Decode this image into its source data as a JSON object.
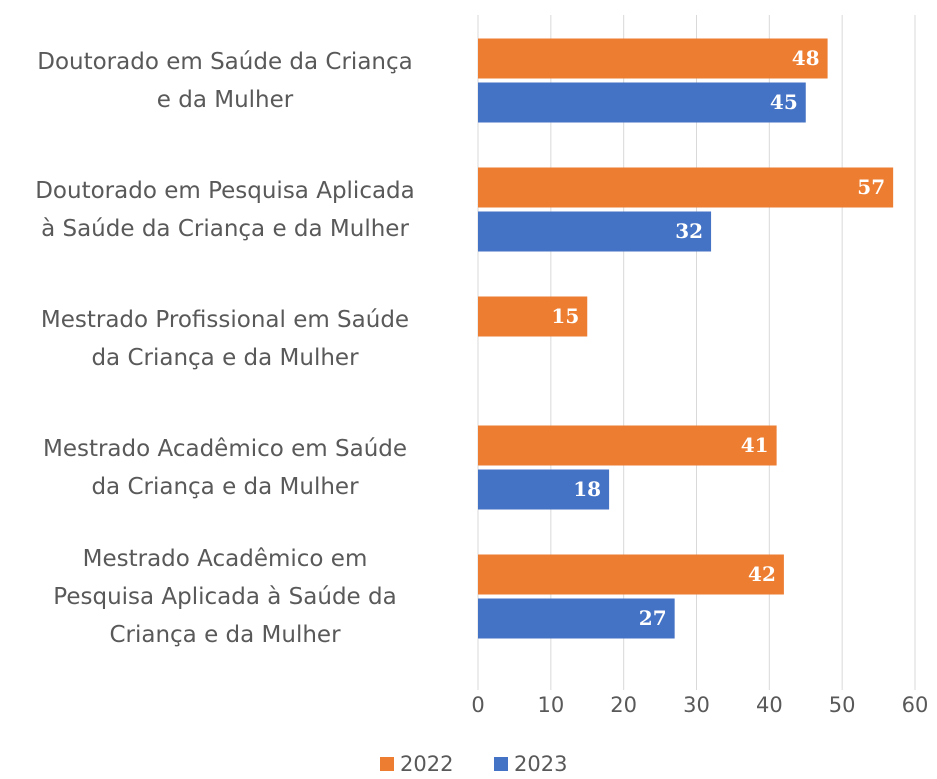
{
  "chart_data": {
    "type": "bar",
    "orientation": "horizontal",
    "categories": [
      "Doutorado em Saúde da Criança\ne da Mulher",
      "Doutorado em Pesquisa Aplicada\nà Saúde da Criança e da Mulher",
      "Mestrado Profissional em Saúde\nda Criança e da Mulher",
      "Mestrado Acadêmico em Saúde\nda Criança e da Mulher",
      "Mestrado Acadêmico em\nPesquisa Aplicada à Saúde da\nCriança e da Mulher"
    ],
    "series": [
      {
        "name": "2022",
        "color": "#ed7d31",
        "values": [
          48,
          57,
          15,
          41,
          42
        ]
      },
      {
        "name": "2023",
        "color": "#4472c4",
        "values": [
          45,
          32,
          null,
          18,
          27
        ]
      }
    ],
    "xlim": [
      0,
      60
    ],
    "xticks": [
      0,
      10,
      20,
      30,
      40,
      50,
      60
    ],
    "grid": true,
    "legend": "bottom"
  }
}
